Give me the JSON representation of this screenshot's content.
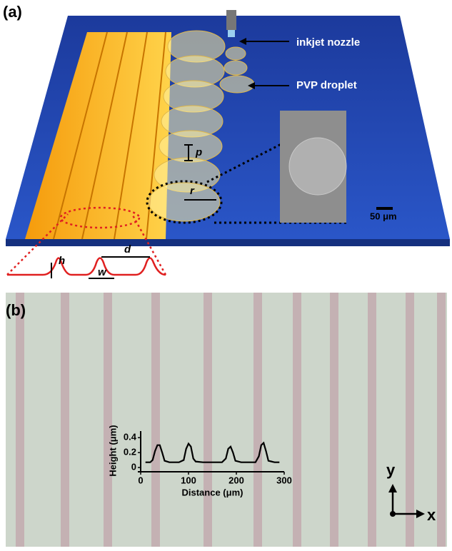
{
  "panel_a": {
    "label": "(a)",
    "nozzle_label": "inkjet nozzle",
    "droplet_label": "PVP droplet",
    "pitch_label": "p",
    "radius_label": "r",
    "scale_bar": "50 μm",
    "height_label": "h",
    "spacing_label": "d",
    "width_label": "w"
  },
  "panel_b": {
    "label": "(b)",
    "y_axis": "y",
    "x_axis": "x"
  },
  "chart_data": {
    "type": "line",
    "x_label": "Distance (μm)",
    "y_label": "Height (μm)",
    "x": [
      10,
      20,
      25,
      30,
      35,
      40,
      45,
      50,
      60,
      80,
      90,
      95,
      100,
      105,
      110,
      115,
      130,
      170,
      178,
      183,
      188,
      193,
      198,
      210,
      240,
      247,
      252,
      257,
      262,
      267,
      280,
      290
    ],
    "values": [
      0.07,
      0.07,
      0.1,
      0.22,
      0.3,
      0.3,
      0.2,
      0.09,
      0.07,
      0.07,
      0.1,
      0.25,
      0.32,
      0.28,
      0.12,
      0.08,
      0.07,
      0.07,
      0.12,
      0.25,
      0.28,
      0.2,
      0.09,
      0.07,
      0.07,
      0.15,
      0.3,
      0.33,
      0.22,
      0.09,
      0.07,
      0.07
    ],
    "color": "#000000",
    "xlim": [
      0,
      300
    ],
    "ylim": [
      0,
      0.45
    ],
    "xticks": [
      0,
      100,
      200,
      300
    ],
    "yticks": [
      0,
      0.2,
      0.4
    ]
  }
}
